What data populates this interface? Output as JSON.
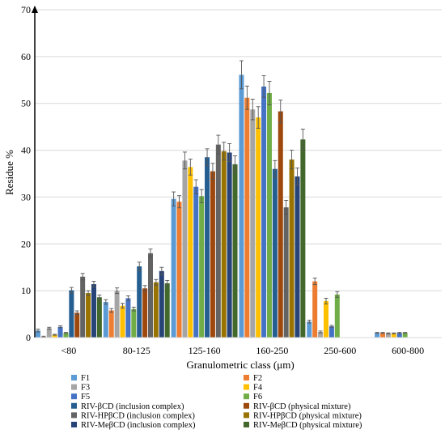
{
  "chart_data": {
    "type": "bar",
    "title": "",
    "xlabel": "Granulometric class (μm)",
    "ylabel": "Residue %",
    "ylim": [
      0,
      70
    ],
    "yticks": [
      0,
      10,
      20,
      30,
      40,
      50,
      60,
      70
    ],
    "grid": true,
    "legend_position": "bottom",
    "categories": [
      "<80",
      "80-125",
      "125-160",
      "160-250",
      "250-600",
      "600-800"
    ],
    "series": [
      {
        "name": "F1",
        "color": "#5b9bd5",
        "values": [
          1.5,
          7.6,
          29.6,
          56.1,
          3.4,
          1.0
        ],
        "errors": [
          0.3,
          0.5,
          1.5,
          3.0,
          0.3,
          0.1
        ]
      },
      {
        "name": "F2",
        "color": "#ed7d31",
        "values": [
          0.2,
          5.8,
          29.0,
          51.2,
          12.0,
          1.0
        ],
        "errors": [
          0.1,
          0.4,
          1.3,
          2.5,
          0.7,
          0.1
        ]
      },
      {
        "name": "F3",
        "color": "#a5a5a5",
        "values": [
          2.0,
          10.0,
          37.8,
          48.7,
          1.2,
          0.9
        ],
        "errors": [
          0.2,
          0.6,
          1.8,
          2.2,
          0.2,
          0.1
        ]
      },
      {
        "name": "F4",
        "color": "#ffc000",
        "values": [
          0.6,
          6.8,
          36.4,
          47.0,
          7.8,
          0.9
        ],
        "errors": [
          0.1,
          0.5,
          1.7,
          2.3,
          0.6,
          0.1
        ]
      },
      {
        "name": "F5",
        "color": "#4472c4",
        "values": [
          2.3,
          8.4,
          32.2,
          53.6,
          2.4,
          1.0
        ],
        "errors": [
          0.2,
          0.5,
          1.5,
          2.3,
          0.2,
          0.1
        ]
      },
      {
        "name": "F6",
        "color": "#70ad47",
        "values": [
          1.0,
          6.1,
          30.2,
          52.2,
          9.2,
          1.0
        ],
        "errors": [
          0.1,
          0.4,
          1.4,
          2.5,
          0.6,
          0.1
        ]
      },
      {
        "name": "RIV-βCD (inclusion complex)",
        "color": "#255e91",
        "values": [
          10.1,
          15.2,
          38.5,
          36.0,
          0,
          0
        ],
        "errors": [
          0.6,
          0.9,
          1.8,
          1.8,
          0,
          0
        ]
      },
      {
        "name": "RIV-βCD (physical mixture)",
        "color": "#9e480e",
        "values": [
          5.3,
          10.5,
          35.5,
          48.3,
          0,
          0
        ],
        "errors": [
          0.4,
          0.6,
          1.7,
          2.4,
          0,
          0
        ]
      },
      {
        "name": "RIV-HPβCD (inclusion complex)",
        "color": "#636363",
        "values": [
          13.0,
          18.0,
          41.2,
          27.8,
          0,
          0
        ],
        "errors": [
          0.7,
          0.9,
          2.0,
          1.5,
          0,
          0
        ]
      },
      {
        "name": "RIV-HPβCD (physical mixture)",
        "color": "#997300",
        "values": [
          9.5,
          11.8,
          39.8,
          38.0,
          0,
          0
        ],
        "errors": [
          0.5,
          0.6,
          1.9,
          2.0,
          0,
          0
        ]
      },
      {
        "name": "RIV-MeβCD (inclusion complex)",
        "color": "#264478",
        "values": [
          11.4,
          14.2,
          39.5,
          34.4,
          0,
          0
        ],
        "errors": [
          0.6,
          0.8,
          1.9,
          1.8,
          0,
          0
        ]
      },
      {
        "name": "RIV-MeβCD (physical mixture)",
        "color": "#43682b",
        "values": [
          8.6,
          11.6,
          37.0,
          42.3,
          0,
          0
        ],
        "errors": [
          0.5,
          0.6,
          1.8,
          2.2,
          0,
          0
        ]
      }
    ]
  }
}
